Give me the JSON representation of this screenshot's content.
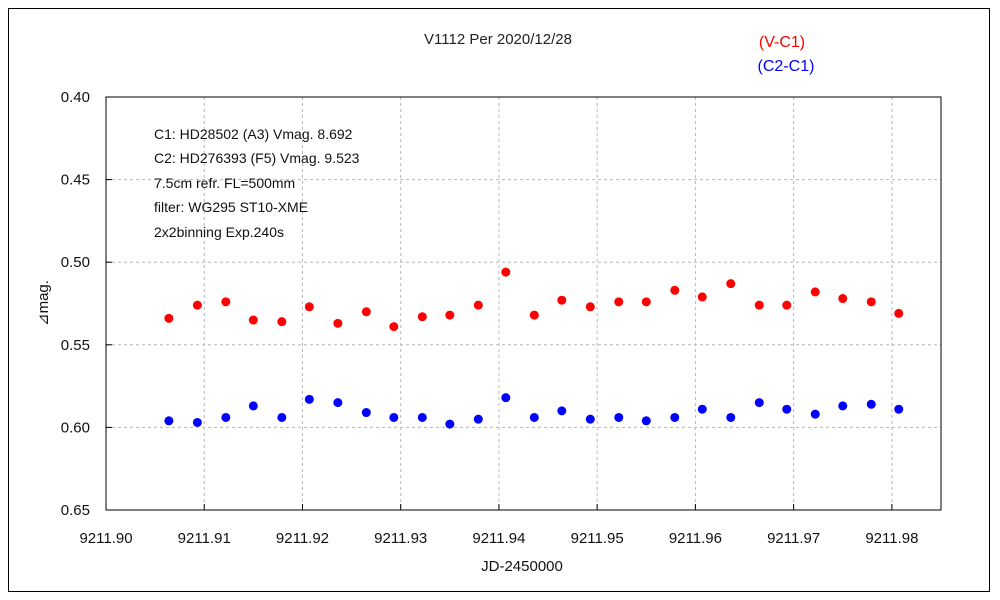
{
  "chart_data": {
    "type": "scatter",
    "title": "V1112 Per   2020/12/28",
    "xlabel": "JD-2450000",
    "ylabel": "⊿mag.",
    "xlim": [
      9211.9,
      9211.985
    ],
    "ylim": [
      0.4,
      0.65
    ],
    "y_inverted": true,
    "grid": true,
    "x_ticks": [
      "9211.90",
      "9211.91",
      "9211.92",
      "9211.93",
      "9211.94",
      "9211.95",
      "9211.96",
      "9211.97",
      "9211.98"
    ],
    "x_tick_values": [
      9211.9,
      9211.91,
      9211.92,
      9211.93,
      9211.94,
      9211.95,
      9211.96,
      9211.97,
      9211.98
    ],
    "y_ticks": [
      "0.40",
      "0.45",
      "0.50",
      "0.55",
      "0.60",
      "0.65"
    ],
    "y_tick_values": [
      0.4,
      0.45,
      0.5,
      0.55,
      0.6,
      0.65
    ],
    "legend_position": "top-right",
    "annotations": [
      "C1: HD28502 (A3) Vmag. 8.692",
      "C2: HD276393 (F5) Vmag. 9.523",
      "7.5cm refr. FL=500mm",
      "filter: WG295  ST10-XME",
      "2x2binning  Exp.240s"
    ],
    "x": [
      9211.9064,
      9211.9093,
      9211.9122,
      9211.915,
      9211.9179,
      9211.9207,
      9211.9236,
      9211.9265,
      9211.9293,
      9211.9322,
      9211.935,
      9211.9379,
      9211.9407,
      9211.9436,
      9211.9464,
      9211.9493,
      9211.9522,
      9211.955,
      9211.9579,
      9211.9607,
      9211.9636,
      9211.9665,
      9211.9693,
      9211.9722,
      9211.975,
      9211.9779,
      9211.9807
    ],
    "series": [
      {
        "name": "(V-C1)",
        "color": "#ff0000",
        "values": [
          0.534,
          0.526,
          0.524,
          0.535,
          0.536,
          0.527,
          0.537,
          0.53,
          0.539,
          0.533,
          0.532,
          0.526,
          0.506,
          0.532,
          0.523,
          0.527,
          0.524,
          0.524,
          0.517,
          0.521,
          0.513,
          0.526,
          0.526,
          0.518,
          0.522,
          0.524,
          0.531
        ]
      },
      {
        "name": "(C2-C1)",
        "color": "#0000ff",
        "values": [
          0.596,
          0.597,
          0.594,
          0.587,
          0.594,
          0.583,
          0.585,
          0.591,
          0.594,
          0.594,
          0.598,
          0.595,
          0.582,
          0.594,
          0.59,
          0.595,
          0.594,
          0.596,
          0.594,
          0.589,
          0.594,
          0.585,
          0.589,
          0.592,
          0.587,
          0.586,
          0.589
        ]
      }
    ]
  }
}
